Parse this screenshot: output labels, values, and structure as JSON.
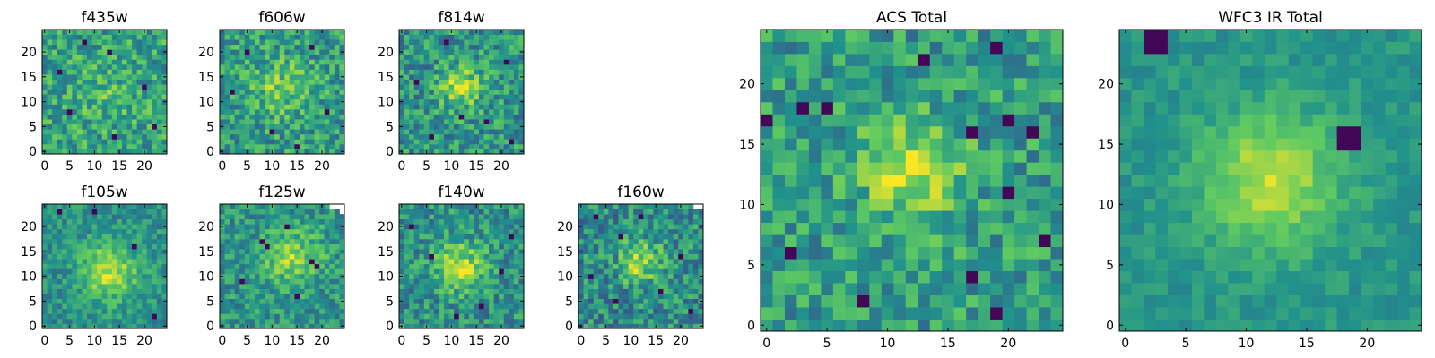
{
  "figure": {
    "description_colormap": "viridis"
  },
  "colors": {
    "colormap": [
      "#440154",
      "#3b528b",
      "#21918c",
      "#5ec962",
      "#fde725"
    ],
    "frame": "#000000",
    "background": "#ffffff"
  },
  "chart_data": [
    {
      "type": "heatmap",
      "title": "f435w",
      "grid_size": 25,
      "x_ticks": [
        0,
        5,
        10,
        15,
        20
      ],
      "y_ticks": [
        0,
        5,
        10,
        15,
        20
      ],
      "xlim": [
        -0.5,
        24.5
      ],
      "ylim": [
        -0.5,
        24.5
      ],
      "pattern": {
        "center": [
          12,
          12
        ],
        "sigma": 4,
        "peak": 0.1,
        "base": 0.58,
        "noise": 0.22,
        "seed": 11,
        "dark_pixels": [
          [
            8,
            22
          ],
          [
            13,
            20
          ],
          [
            3,
            16
          ],
          [
            20,
            13
          ],
          [
            22,
            5
          ],
          [
            14,
            3
          ],
          [
            5,
            8
          ]
        ],
        "missing": []
      }
    },
    {
      "type": "heatmap",
      "title": "f606w",
      "grid_size": 25,
      "x_ticks": [
        0,
        5,
        10,
        15,
        20
      ],
      "y_ticks": [
        0,
        5,
        10,
        15,
        20
      ],
      "xlim": [
        -0.5,
        24.5
      ],
      "ylim": [
        -0.5,
        24.5
      ],
      "pattern": {
        "center": [
          12,
          13
        ],
        "sigma": 4,
        "peak": 0.22,
        "base": 0.55,
        "noise": 0.22,
        "seed": 23,
        "dark_pixels": [
          [
            5,
            20
          ],
          [
            18,
            21
          ],
          [
            2,
            12
          ],
          [
            21,
            8
          ],
          [
            10,
            4
          ],
          [
            15,
            1
          ]
        ],
        "missing": []
      }
    },
    {
      "type": "heatmap",
      "title": "f814w",
      "grid_size": 25,
      "x_ticks": [
        0,
        5,
        10,
        15,
        20
      ],
      "y_ticks": [
        0,
        5,
        10,
        15,
        20
      ],
      "xlim": [
        -0.5,
        24.5
      ],
      "ylim": [
        -0.5,
        24.5
      ],
      "pattern": {
        "center": [
          12,
          13
        ],
        "sigma": 3,
        "peak": 0.35,
        "base": 0.52,
        "noise": 0.22,
        "seed": 37,
        "dark_pixels": [
          [
            9,
            22
          ],
          [
            21,
            18
          ],
          [
            3,
            14
          ],
          [
            17,
            6
          ],
          [
            6,
            3
          ],
          [
            22,
            2
          ],
          [
            12,
            7
          ]
        ],
        "missing": []
      }
    },
    {
      "type": "heatmap",
      "title": "f105w",
      "grid_size": 25,
      "x_ticks": [
        0,
        5,
        10,
        15,
        20
      ],
      "y_ticks": [
        0,
        5,
        10,
        15,
        20
      ],
      "xlim": [
        -0.5,
        24.5
      ],
      "ylim": [
        -0.5,
        24.5
      ],
      "pattern": {
        "center": [
          13,
          11
        ],
        "sigma": 4,
        "peak": 0.4,
        "base": 0.5,
        "noise": 0.15,
        "seed": 41,
        "dark_pixels": [
          [
            18,
            16
          ],
          [
            3,
            23
          ],
          [
            10,
            23
          ],
          [
            22,
            2
          ]
        ],
        "missing": []
      }
    },
    {
      "type": "heatmap",
      "title": "f125w",
      "grid_size": 25,
      "x_ticks": [
        0,
        5,
        10,
        15,
        20
      ],
      "y_ticks": [
        0,
        5,
        10,
        15,
        20
      ],
      "xlim": [
        -0.5,
        24.5
      ],
      "ylim": [
        -0.5,
        24.5
      ],
      "pattern": {
        "center": [
          14,
          14
        ],
        "sigma": 4,
        "peak": 0.3,
        "base": 0.52,
        "noise": 0.18,
        "seed": 53,
        "dark_pixels": [
          [
            8,
            17
          ],
          [
            9,
            16
          ],
          [
            13,
            20
          ],
          [
            18,
            13
          ],
          [
            19,
            12
          ],
          [
            4,
            9
          ],
          [
            15,
            6
          ]
        ],
        "missing": [
          [
            22,
            24
          ],
          [
            23,
            24
          ],
          [
            24,
            24
          ],
          [
            24,
            23
          ]
        ]
      }
    },
    {
      "type": "heatmap",
      "title": "f140w",
      "grid_size": 25,
      "x_ticks": [
        0,
        5,
        10,
        15,
        20
      ],
      "y_ticks": [
        0,
        5,
        10,
        15,
        20
      ],
      "xlim": [
        -0.5,
        24.5
      ],
      "ylim": [
        -0.5,
        24.5
      ],
      "pattern": {
        "center": [
          12,
          12
        ],
        "sigma": 3.5,
        "peak": 0.38,
        "base": 0.5,
        "noise": 0.2,
        "seed": 67,
        "dark_pixels": [
          [
            20,
            11
          ],
          [
            6,
            14
          ],
          [
            16,
            4
          ],
          [
            11,
            2
          ],
          [
            22,
            18
          ],
          [
            2,
            20
          ]
        ],
        "missing": []
      }
    },
    {
      "type": "heatmap",
      "title": "f160w",
      "grid_size": 25,
      "x_ticks": [
        0,
        5,
        10,
        15,
        20
      ],
      "y_ticks": [
        0,
        5,
        10,
        15,
        20
      ],
      "xlim": [
        -0.5,
        24.5
      ],
      "ylim": [
        -0.5,
        24.5
      ],
      "pattern": {
        "center": [
          12,
          13
        ],
        "sigma": 3,
        "peak": 0.38,
        "base": 0.48,
        "noise": 0.22,
        "seed": 79,
        "dark_pixels": [
          [
            3,
            22
          ],
          [
            8,
            18
          ],
          [
            2,
            10
          ],
          [
            20,
            14
          ],
          [
            16,
            7
          ],
          [
            7,
            5
          ],
          [
            22,
            3
          ],
          [
            12,
            22
          ]
        ],
        "missing": [
          [
            23,
            24
          ],
          [
            24,
            24
          ]
        ]
      }
    },
    {
      "type": "heatmap",
      "title": "ACS Total",
      "grid_size": 25,
      "x_ticks": [
        0,
        5,
        10,
        15,
        20
      ],
      "y_ticks": [
        0,
        5,
        10,
        15,
        20
      ],
      "xlim": [
        -0.5,
        24.5
      ],
      "ylim": [
        -0.5,
        24.5
      ],
      "pattern": {
        "center": [
          12,
          13
        ],
        "sigma": 3,
        "peak": 0.35,
        "base": 0.55,
        "noise": 0.2,
        "seed": 97,
        "dark_pixels": [
          [
            19,
            23
          ],
          [
            13,
            22
          ],
          [
            0,
            17
          ],
          [
            3,
            18
          ],
          [
            5,
            18
          ],
          [
            17,
            16
          ],
          [
            20,
            17
          ],
          [
            22,
            16
          ],
          [
            20,
            11
          ],
          [
            23,
            7
          ],
          [
            2,
            6
          ],
          [
            8,
            2
          ],
          [
            19,
            1
          ],
          [
            17,
            4
          ]
        ],
        "missing": []
      }
    },
    {
      "type": "heatmap",
      "title": "WFC3 IR Total",
      "grid_size": 25,
      "x_ticks": [
        0,
        5,
        10,
        15,
        20
      ],
      "y_ticks": [
        0,
        5,
        10,
        15,
        20
      ],
      "xlim": [
        -0.5,
        24.5
      ],
      "ylim": [
        -0.5,
        24.5
      ],
      "pattern": {
        "center": [
          12,
          12
        ],
        "sigma": 4,
        "peak": 0.38,
        "base": 0.52,
        "noise": 0.08,
        "seed": 113,
        "dark_pixels": [
          [
            18,
            16
          ],
          [
            19,
            16
          ],
          [
            18,
            15
          ],
          [
            19,
            15
          ],
          [
            2,
            24
          ],
          [
            3,
            24
          ],
          [
            2,
            23
          ],
          [
            3,
            23
          ]
        ],
        "missing": []
      }
    }
  ]
}
